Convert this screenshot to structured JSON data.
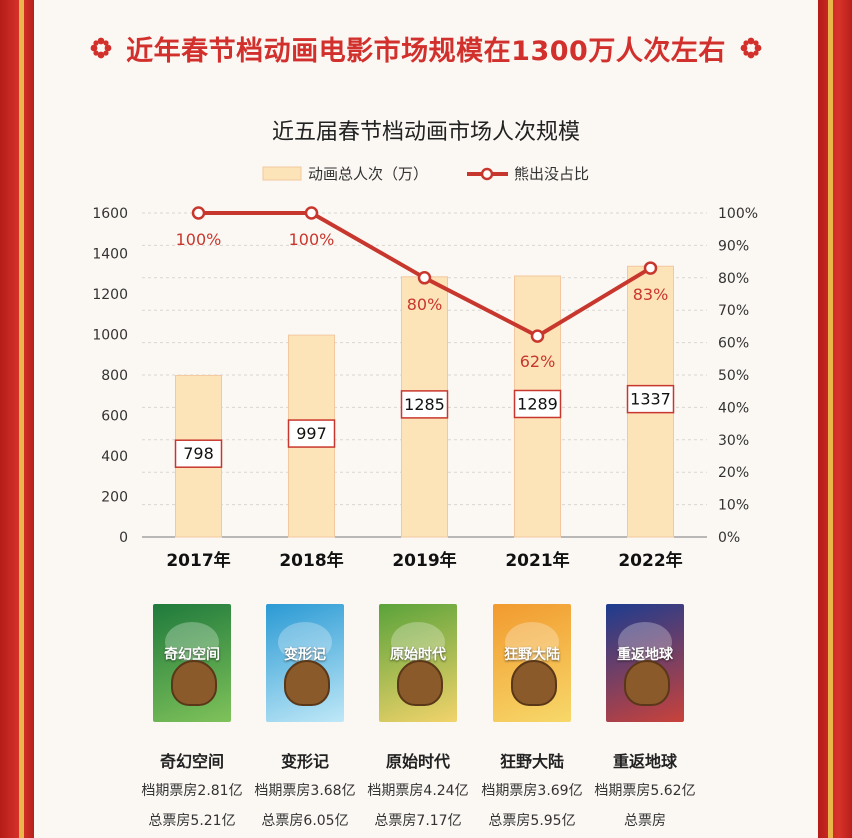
{
  "headline": "近年春节档动画电影市场规模在1300万人次左右",
  "chart_data": {
    "type": "bar+line",
    "title": "近五届春节档动画市场人次规模",
    "categories": [
      "2017年",
      "2018年",
      "2019年",
      "2021年",
      "2022年"
    ],
    "series": [
      {
        "name": "动画总人次（万）",
        "type": "bar",
        "axis": "left",
        "values": [
          798,
          997,
          1285,
          1289,
          1337
        ],
        "color": "#fde3b8"
      },
      {
        "name": "熊出没占比",
        "type": "line",
        "axis": "right",
        "values": [
          100,
          100,
          80,
          62,
          83
        ],
        "labels": [
          "100%",
          "100%",
          "80%",
          "62%",
          "83%"
        ],
        "color": "#c8372d"
      }
    ],
    "y_left": {
      "min": 0,
      "max": 1600,
      "ticks": [
        "0",
        "200",
        "400",
        "600",
        "800",
        "1000",
        "1200",
        "1400",
        "1600"
      ]
    },
    "y_right": {
      "min": 0,
      "max": 100,
      "ticks": [
        "0%",
        "10%",
        "20%",
        "30%",
        "40%",
        "50%",
        "60%",
        "70%",
        "80%",
        "90%",
        "100%"
      ]
    },
    "grid": true,
    "legend": "top-center"
  },
  "films": [
    {
      "name": "奇幻空间",
      "box_period": "档期票房2.81亿",
      "box_total": "总票房5.21亿",
      "poster_title": "奇幻空间",
      "colors": [
        "#1f7a3c",
        "#7fc25a"
      ]
    },
    {
      "name": "变形记",
      "box_period": "档期票房3.68亿",
      "box_total": "总票房6.05亿",
      "poster_title": "变形记",
      "colors": [
        "#2a9ad4",
        "#bfe8f7"
      ]
    },
    {
      "name": "原始时代",
      "box_period": "档期票房4.24亿",
      "box_total": "总票房7.17亿",
      "poster_title": "原始时代",
      "colors": [
        "#5aa33a",
        "#f2d36b"
      ]
    },
    {
      "name": "狂野大陆",
      "box_period": "档期票房3.69亿",
      "box_total": "总票房5.95亿",
      "poster_title": "狂野大陆",
      "colors": [
        "#f29a2e",
        "#f7d86a"
      ]
    },
    {
      "name": "重返地球",
      "box_period": "档期票房5.62亿",
      "box_total": "总票房",
      "poster_title": "重返地球",
      "colors": [
        "#1d3c8f",
        "#c9423b"
      ]
    }
  ]
}
